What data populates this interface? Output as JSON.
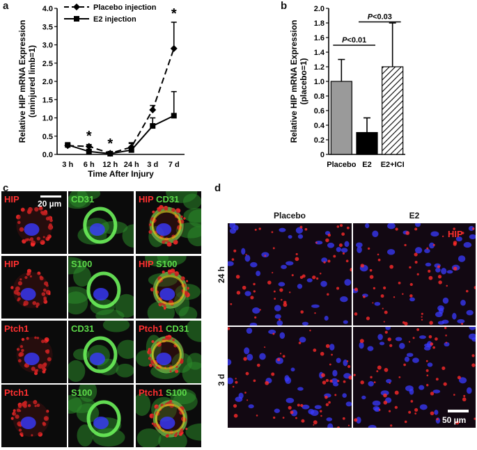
{
  "panels": {
    "a": "a",
    "b": "b",
    "c": "c",
    "d": "d"
  },
  "chart_data": [
    {
      "panel": "a",
      "type": "line",
      "categories": [
        "3 h",
        "6 h",
        "12 h",
        "24 h",
        "3 d",
        "7 d"
      ],
      "xlabel": "Time After Injury",
      "ylabel": "Relative HIP mRNA Expression",
      "ylabel2": "(uninjured limb=1)",
      "ylim": [
        0,
        4.0
      ],
      "yticks": [
        "0.0",
        "0.5",
        "1.0",
        "1.5",
        "2.0",
        "2.5",
        "3.0",
        "3.5",
        "4.0"
      ],
      "legend_position": "top-left",
      "series": [
        {
          "name": "Placebo injection",
          "marker": "diamond",
          "line": "dashed",
          "values": [
            0.24,
            0.22,
            0.03,
            0.2,
            1.22,
            2.9
          ],
          "errors": [
            0.03,
            0.05,
            0.03,
            0.1,
            0.12,
            0.72
          ]
        },
        {
          "name": "E2 injection",
          "marker": "square",
          "line": "solid",
          "values": [
            0.26,
            0.08,
            0.02,
            0.12,
            0.78,
            1.06
          ],
          "errors": [
            0.03,
            0.03,
            0.02,
            0.2,
            0.22,
            0.66
          ]
        }
      ],
      "significance": [
        {
          "x": "6 h",
          "label": "*"
        },
        {
          "x": "12 h",
          "label": "*"
        },
        {
          "x": "7 d",
          "label": "*"
        }
      ]
    },
    {
      "panel": "b",
      "type": "bar",
      "categories": [
        "Placebo",
        "E2",
        "E2+ICI"
      ],
      "values": [
        1.0,
        0.3,
        1.2
      ],
      "errors": [
        0.3,
        0.2,
        0.6
      ],
      "patterns": [
        "gray",
        "black",
        "hatched"
      ],
      "ylabel": "Relative HIP mRNA Expression",
      "ylabel2": "(placebo=1)",
      "ylim": [
        0,
        2.0
      ],
      "yticks": [
        "0",
        "0.2",
        "0.4",
        "0.6",
        "0.8",
        "1.0",
        "1.2",
        "1.4",
        "1.6",
        "1.8",
        "2.0"
      ],
      "comparisons": [
        {
          "from": "Placebo",
          "to": "E2",
          "label": "P<0.01"
        },
        {
          "from": "E2",
          "to": "E2+ICI",
          "label": "P<0.03"
        }
      ]
    }
  ],
  "panel_c": {
    "scalebar_label": "20 µm",
    "rows": [
      [
        {
          "parts": [
            {
              "text": "HIP",
              "color": "red"
            }
          ]
        },
        {
          "parts": [
            {
              "text": "CD31",
              "color": "green"
            }
          ]
        },
        {
          "parts": [
            {
              "text": "HIP",
              "color": "red"
            },
            {
              "text": " CD31",
              "color": "green"
            }
          ]
        }
      ],
      [
        {
          "parts": [
            {
              "text": "HIP",
              "color": "red"
            }
          ]
        },
        {
          "parts": [
            {
              "text": "S100",
              "color": "green"
            }
          ]
        },
        {
          "parts": [
            {
              "text": "HIP",
              "color": "red"
            },
            {
              "text": " S100",
              "color": "green"
            }
          ]
        }
      ],
      [
        {
          "parts": [
            {
              "text": "Ptch1",
              "color": "red"
            }
          ]
        },
        {
          "parts": [
            {
              "text": "CD31",
              "color": "green"
            }
          ]
        },
        {
          "parts": [
            {
              "text": "Ptch1",
              "color": "red"
            },
            {
              "text": " CD31",
              "color": "green"
            }
          ]
        }
      ],
      [
        {
          "parts": [
            {
              "text": "Ptch1",
              "color": "red"
            }
          ]
        },
        {
          "parts": [
            {
              "text": "S100",
              "color": "green"
            }
          ]
        },
        {
          "parts": [
            {
              "text": "Ptch1",
              "color": "red"
            },
            {
              "text": " S100",
              "color": "green"
            }
          ]
        }
      ]
    ]
  },
  "panel_d": {
    "col_labels": [
      "Placebo",
      "E2"
    ],
    "row_labels": [
      "24 h",
      "3 d"
    ],
    "stain_label": "HIP",
    "scalebar_label": "50 µm"
  },
  "colors": {
    "red_channel": "#ff2a2a",
    "green_channel": "#5ddc4a",
    "nuclei_blue": "#3a3aff",
    "bar_gray": "#9a9a9a",
    "bar_black": "#000000"
  }
}
